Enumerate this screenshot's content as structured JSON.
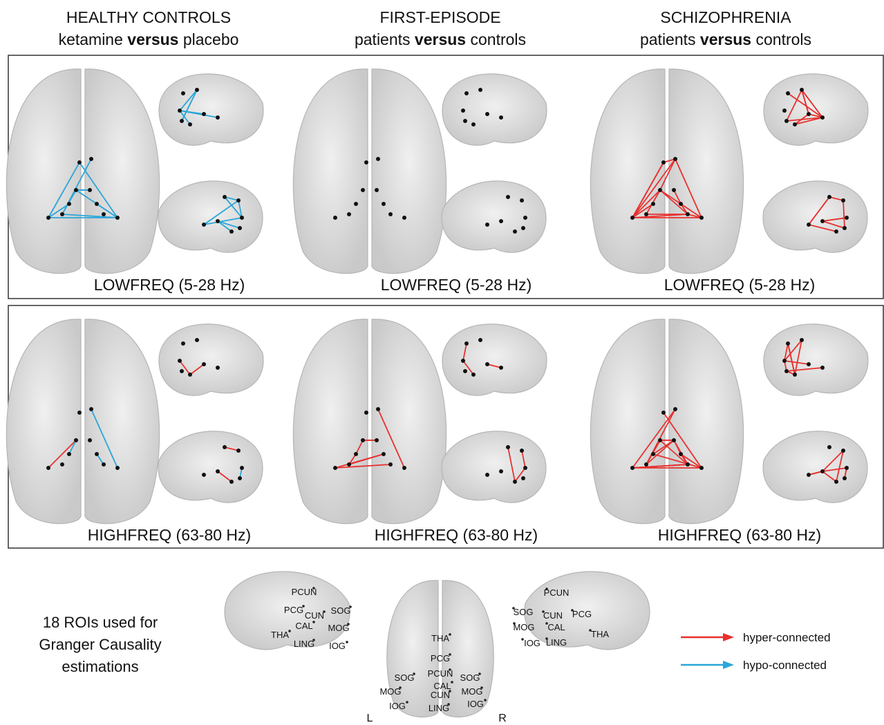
{
  "columns": [
    {
      "title": "HEALTHY CONTROLS",
      "subtitle_before": "ketamine ",
      "subtitle_bold": "versus",
      "subtitle_after": " placebo"
    },
    {
      "title": "FIRST-EPISODE",
      "subtitle_before": "patients ",
      "subtitle_bold": "versus",
      "subtitle_after": " controls"
    },
    {
      "title": "SCHIZOPHRENIA",
      "subtitle_before": "patients ",
      "subtitle_bold": "versus",
      "subtitle_after": " controls"
    }
  ],
  "rows": [
    {
      "labels": [
        "LOWFREQ (5-28 Hz)",
        "LOWFREQ (5-28 Hz)",
        "LOWFREQ (5-28 Hz)"
      ]
    },
    {
      "labels": [
        "HIGHFREQ (63-80 Hz)",
        "HIGHFREQ (63-80 Hz)",
        "HIGHFREQ (63-80 Hz)"
      ]
    }
  ],
  "roi_note": [
    "18 ROIs used for",
    "Granger Causality",
    "estimations"
  ],
  "roi_views": [
    {
      "labels": [
        "PCUN",
        "PCG",
        "CUN",
        "SOG",
        "CAL",
        "MOG",
        "THA",
        "LING",
        "IOG"
      ]
    },
    {
      "labels": [
        "THA",
        "PCG",
        "SOG",
        "PCUN",
        "SOG",
        "MOG",
        "CAL",
        "MOG",
        "CUN",
        "IOG",
        "LING",
        "IOG"
      ]
    },
    {
      "labels": [
        "PCUN",
        "SOG",
        "CUN",
        "PCG",
        "MOG",
        "CAL",
        "THA",
        "IOG",
        "LING"
      ]
    }
  ],
  "orientation": {
    "left": "L",
    "right": "R"
  },
  "legend": [
    {
      "name": "hyper-connected",
      "color": "#e8302e"
    },
    {
      "name": "hypo-connected",
      "color": "#2aa6d8"
    }
  ]
}
